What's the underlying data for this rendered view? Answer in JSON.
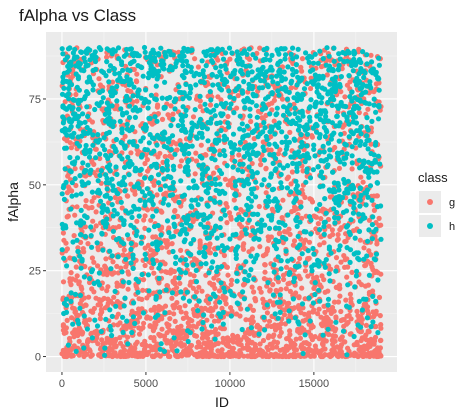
{
  "chart_data": {
    "type": "scatter",
    "title": "fAlpha vs Class",
    "xlabel": "ID",
    "ylabel": "fAlpha",
    "xlim": [
      -950,
      19950
    ],
    "ylim": [
      -4.5,
      94.5
    ],
    "x_ticks": [
      0,
      5000,
      10000,
      15000
    ],
    "x_tick_labels": [
      "0",
      "5000",
      "10000",
      "15000"
    ],
    "y_ticks": [
      0,
      25,
      50,
      75
    ],
    "y_tick_labels": [
      "0",
      "25",
      "50",
      "75"
    ],
    "grid": true,
    "legend_title": "class",
    "legend_position": "right",
    "series": [
      {
        "name": "g",
        "color": "#F8766D",
        "x_range": [
          0,
          19000
        ],
        "y_range": [
          0,
          90
        ],
        "distribution": "concentrated toward low fAlpha (0-30), sparser above 50",
        "approx_points": 12300
      },
      {
        "name": "h",
        "color": "#00BFC4",
        "x_range": [
          0,
          19000
        ],
        "y_range": [
          0,
          90
        ],
        "distribution": "spread across all fAlpha values, dense in 40-90 range",
        "approx_points": 6700
      }
    ]
  }
}
